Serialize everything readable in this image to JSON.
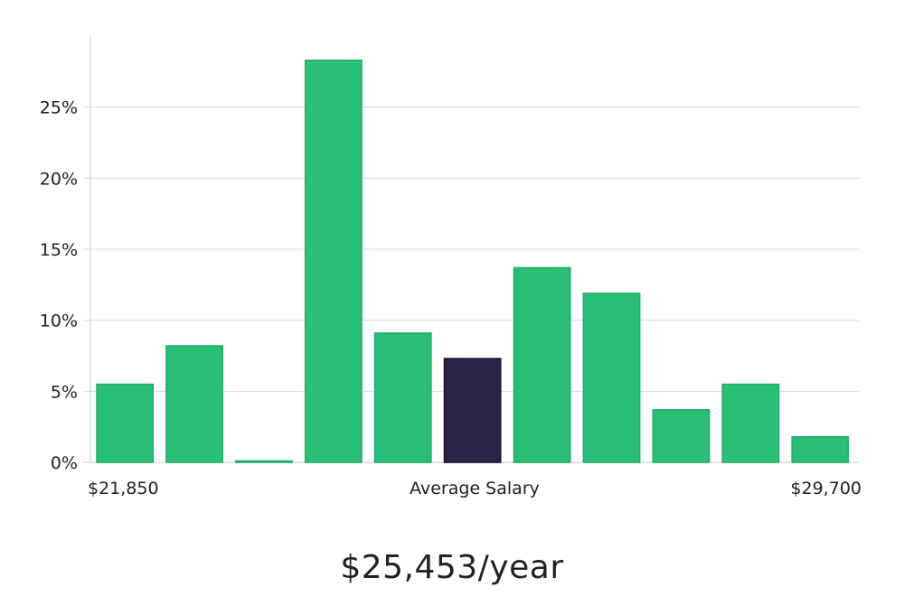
{
  "chart_data": {
    "type": "bar",
    "values": [
      5.5,
      8.2,
      0.1,
      28.3,
      9.1,
      7.3,
      13.7,
      11.9,
      3.7,
      5.5,
      1.8
    ],
    "highlight_index": 5,
    "ylim": [
      0,
      30
    ],
    "yticks": [
      0,
      5,
      10,
      15,
      20,
      25
    ],
    "ytick_labels": [
      "0%",
      "5%",
      "10%",
      "15%",
      "20%",
      "25%"
    ],
    "grid": true,
    "colors": {
      "bar": "#2abf77",
      "bar_edge": "#1fad69",
      "highlight": "#2a2547",
      "highlight_edge": "#15122e"
    },
    "x_left_label": "$21,850",
    "x_center_label": "Average Salary",
    "x_right_label": "$29,700"
  },
  "salary": {
    "text": "$25,453/year"
  }
}
